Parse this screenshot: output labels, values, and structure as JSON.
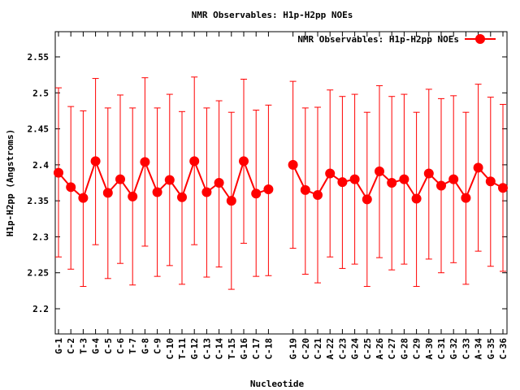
{
  "chart_data": {
    "type": "line",
    "title": "NMR Observables: H1p-H2pp NOEs",
    "xlabel": "Nucleotide",
    "ylabel": "H1p-H2pp (Angstroms)",
    "ylim": [
      2.165,
      2.585
    ],
    "yticks": [
      "2.2",
      "2.25",
      "2.3",
      "2.35",
      "2.4",
      "2.45",
      "2.5",
      "2.55"
    ],
    "legend_position": "top-right",
    "grid": false,
    "color": "#ff0000",
    "series": [
      {
        "name": "NMR Observables: H1p-H2pp NOEs",
        "points": [
          {
            "label": "G-1",
            "y": 2.389,
            "low": 2.272,
            "high": 2.507
          },
          {
            "label": "C-2",
            "y": 2.369,
            "low": 2.255,
            "high": 2.481
          },
          {
            "label": "T-3",
            "y": 2.354,
            "low": 2.231,
            "high": 2.475
          },
          {
            "label": "G-4",
            "y": 2.405,
            "low": 2.289,
            "high": 2.52
          },
          {
            "label": "C-5",
            "y": 2.361,
            "low": 2.242,
            "high": 2.479
          },
          {
            "label": "C-6",
            "y": 2.38,
            "low": 2.263,
            "high": 2.497
          },
          {
            "label": "T-7",
            "y": 2.356,
            "low": 2.233,
            "high": 2.479
          },
          {
            "label": "G-8",
            "y": 2.404,
            "low": 2.287,
            "high": 2.521
          },
          {
            "label": "C-9",
            "y": 2.362,
            "low": 2.245,
            "high": 2.479
          },
          {
            "label": "C-10",
            "y": 2.379,
            "low": 2.26,
            "high": 2.498
          },
          {
            "label": "T-11",
            "y": 2.355,
            "low": 2.234,
            "high": 2.474
          },
          {
            "label": "G-12",
            "y": 2.405,
            "low": 2.289,
            "high": 2.522
          },
          {
            "label": "C-13",
            "y": 2.362,
            "low": 2.244,
            "high": 2.479
          },
          {
            "label": "C-14",
            "y": 2.375,
            "low": 2.258,
            "high": 2.489
          },
          {
            "label": "T-15",
            "y": 2.35,
            "low": 2.227,
            "high": 2.473
          },
          {
            "label": "G-16",
            "y": 2.405,
            "low": 2.291,
            "high": 2.519
          },
          {
            "label": "C-17",
            "y": 2.36,
            "low": 2.245,
            "high": 2.476
          },
          {
            "label": "C-18",
            "y": 2.366,
            "low": 2.246,
            "high": 2.483
          },
          {
            "label": "G-19",
            "y": 2.4,
            "low": 2.284,
            "high": 2.516
          },
          {
            "label": "C-20",
            "y": 2.365,
            "low": 2.248,
            "high": 2.479
          },
          {
            "label": "C-21",
            "y": 2.358,
            "low": 2.236,
            "high": 2.48
          },
          {
            "label": "A-22",
            "y": 2.388,
            "low": 2.272,
            "high": 2.504
          },
          {
            "label": "C-23",
            "y": 2.376,
            "low": 2.256,
            "high": 2.495
          },
          {
            "label": "G-24",
            "y": 2.38,
            "low": 2.262,
            "high": 2.498
          },
          {
            "label": "C-25",
            "y": 2.352,
            "low": 2.231,
            "high": 2.473
          },
          {
            "label": "A-26",
            "y": 2.391,
            "low": 2.271,
            "high": 2.51
          },
          {
            "label": "C-27",
            "y": 2.375,
            "low": 2.254,
            "high": 2.495
          },
          {
            "label": "G-28",
            "y": 2.38,
            "low": 2.262,
            "high": 2.498
          },
          {
            "label": "C-29",
            "y": 2.353,
            "low": 2.231,
            "high": 2.473
          },
          {
            "label": "A-30",
            "y": 2.388,
            "low": 2.269,
            "high": 2.505
          },
          {
            "label": "C-31",
            "y": 2.371,
            "low": 2.25,
            "high": 2.492
          },
          {
            "label": "G-32",
            "y": 2.38,
            "low": 2.264,
            "high": 2.496
          },
          {
            "label": "C-33",
            "y": 2.354,
            "low": 2.234,
            "high": 2.473
          },
          {
            "label": "A-34",
            "y": 2.396,
            "low": 2.28,
            "high": 2.512
          },
          {
            "label": "G-35",
            "y": 2.377,
            "low": 2.259,
            "high": 2.494
          },
          {
            "label": "C-36",
            "y": 2.368,
            "low": 2.252,
            "high": 2.484
          }
        ]
      }
    ]
  }
}
